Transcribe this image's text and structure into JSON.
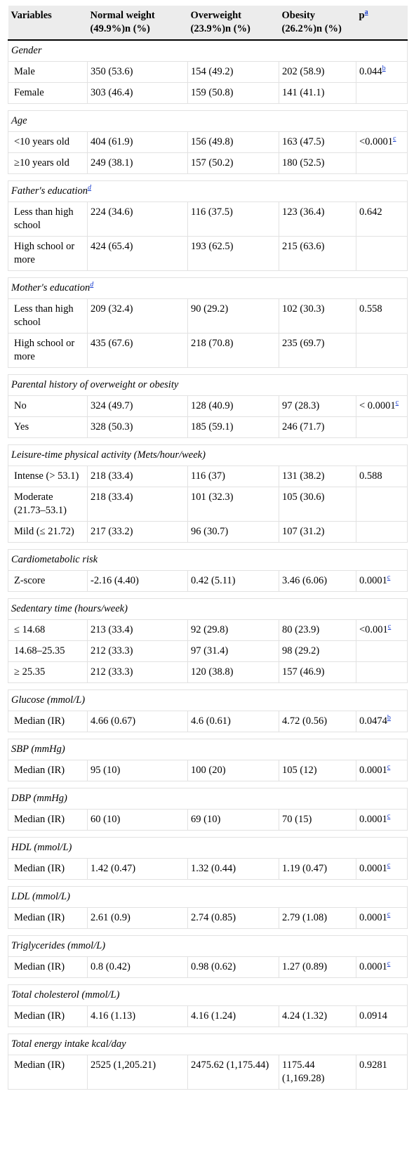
{
  "table": {
    "header": [
      "Variables",
      "Normal weight (49.9%)n (%)",
      "Overweight (23.9%)n (%)",
      "Obesity (26.2%)n (%)",
      "p"
    ],
    "header_sup": "a",
    "sections": [
      {
        "title": "Gender",
        "rows": [
          {
            "cells": [
              "Male",
              "350 (53.6)",
              "154 (49.2)",
              "202 (58.9)",
              "0.044"
            ],
            "sup": "b"
          },
          {
            "cells": [
              "Female",
              "303 (46.4)",
              "159 (50.8)",
              "141 (41.1)"
            ]
          }
        ]
      },
      {
        "title": "Age",
        "rows": [
          {
            "cells": [
              "<10 years old",
              "404 (61.9)",
              "156 (49.8)",
              "163 (47.5)",
              "<0.0001"
            ],
            "sup": "c"
          },
          {
            "cells": [
              "≥10 years old",
              "249 (38.1)",
              "157 (50.2)",
              "180 (52.5)"
            ]
          }
        ]
      },
      {
        "title": "Father's education",
        "title_sup": "d",
        "rows": [
          {
            "cells": [
              "Less than high school",
              "224 (34.6)",
              "116 (37.5)",
              "123 (36.4)",
              "0.642"
            ]
          },
          {
            "cells": [
              "High school or more",
              "424 (65.4)",
              "193 (62.5)",
              "215 (63.6)"
            ]
          }
        ]
      },
      {
        "title": "Mother's education",
        "title_sup": "d",
        "rows": [
          {
            "cells": [
              "Less than high school",
              "209 (32.4)",
              "90 (29.2)",
              "102 (30.3)",
              "0.558"
            ]
          },
          {
            "cells": [
              "High school or more",
              "435 (67.6)",
              "218 (70.8)",
              "235 (69.7)"
            ]
          }
        ]
      },
      {
        "title": "Parental history of overweight or obesity",
        "rows": [
          {
            "cells": [
              "No",
              "324 (49.7)",
              "128 (40.9)",
              "97 (28.3)",
              "< 0.0001"
            ],
            "sup": "c"
          },
          {
            "cells": [
              "Yes",
              "328 (50.3)",
              "185 (59.1)",
              "246 (71.7)"
            ]
          }
        ]
      },
      {
        "title": "Leisure-time physical activity (Mets/hour/week)",
        "rows": [
          {
            "cells": [
              "Intense (> 53.1)",
              "218 (33.4)",
              "116 (37)",
              "131 (38.2)",
              "0.588"
            ]
          },
          {
            "cells": [
              "Moderate (21.73–53.1)",
              "218 (33.4)",
              "101 (32.3)",
              "105 (30.6)"
            ]
          },
          {
            "cells": [
              "Mild (≤ 21.72)",
              "217 (33.2)",
              "96 (30.7)",
              "107 (31.2)"
            ]
          }
        ]
      },
      {
        "title": "Cardiometabolic risk",
        "rows": [
          {
            "cells": [
              "Z-score",
              "-2.16 (4.40)",
              "0.42 (5.11)",
              "3.46 (6.06)",
              "0.0001"
            ],
            "sup": "c"
          }
        ]
      },
      {
        "title": "Sedentary time (hours/week)",
        "rows": [
          {
            "cells": [
              "≤ 14.68",
              "213 (33.4)",
              "92 (29.8)",
              "80 (23.9)",
              "<0.001"
            ],
            "sup": "c"
          },
          {
            "cells": [
              "14.68–25.35",
              "212 (33.3)",
              "97 (31.4)",
              "98 (29.2)"
            ]
          },
          {
            "cells": [
              "≥ 25.35",
              "212 (33.3)",
              "120 (38.8)",
              "157 (46.9)"
            ]
          }
        ]
      },
      {
        "title": "Glucose (mmol/L)",
        "rows": [
          {
            "cells": [
              "Median (IR)",
              "4.66 (0.67)",
              "4.6 (0.61)",
              "4.72 (0.56)",
              "0.0474"
            ],
            "sup": "b"
          }
        ]
      },
      {
        "title": "SBP (mmHg)",
        "rows": [
          {
            "cells": [
              "Median (IR)",
              "95 (10)",
              "100 (20)",
              "105 (12)",
              "0.0001"
            ],
            "sup": "c"
          }
        ]
      },
      {
        "title": "DBP (mmHg)",
        "rows": [
          {
            "cells": [
              "Median (IR)",
              "60 (10)",
              "69 (10)",
              "70 (15)",
              "0.0001"
            ],
            "sup": "c"
          }
        ]
      },
      {
        "title": "HDL (mmol/L)",
        "rows": [
          {
            "cells": [
              "Median (IR)",
              "1.42 (0.47)",
              "1.32 (0.44)",
              "1.19 (0.47)",
              "0.0001"
            ],
            "sup": "c"
          }
        ]
      },
      {
        "title": "LDL (mmol/L)",
        "rows": [
          {
            "cells": [
              "Median (IR)",
              "2.61 (0.9)",
              "2.74 (0.85)",
              "2.79 (1.08)",
              "0.0001"
            ],
            "sup": "c"
          }
        ]
      },
      {
        "title": "Triglycerides (mmol/L)",
        "rows": [
          {
            "cells": [
              "Median (IR)",
              "0.8 (0.42)",
              "0.98 (0.62)",
              "1.27 (0.89)",
              "0.0001"
            ],
            "sup": "c"
          }
        ]
      },
      {
        "title": "Total cholesterol (mmol/L)",
        "rows": [
          {
            "cells": [
              "Median (IR)",
              "4.16 (1.13)",
              "4.16 (1.24)",
              "4.24 (1.32)",
              "0.0914"
            ]
          }
        ]
      },
      {
        "title": "Total energy intake kcal/day",
        "rows": [
          {
            "cells": [
              "Median (IR)",
              "2525 (1,205.21)",
              "2475.62 (1,175.44)",
              "1175.44 (1,169.28)",
              "0.9281"
            ]
          }
        ]
      }
    ]
  }
}
